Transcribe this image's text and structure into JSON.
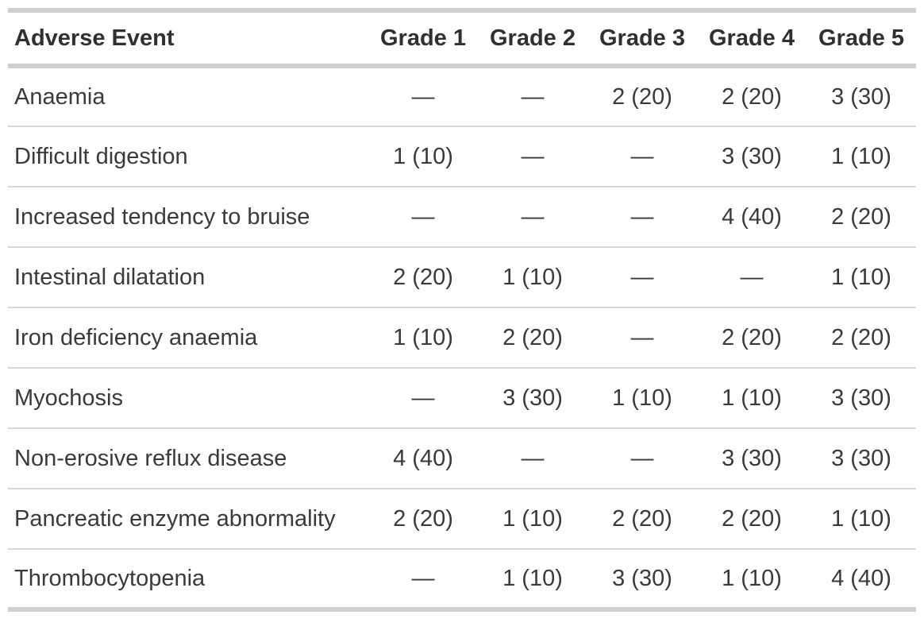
{
  "table": {
    "columns": [
      "Adverse Event",
      "Grade 1",
      "Grade 2",
      "Grade 3",
      "Grade 4",
      "Grade 5"
    ],
    "empty_marker": "—",
    "rows": [
      {
        "event": "Anaemia",
        "grades": [
          "—",
          "—",
          "2 (20)",
          "2 (20)",
          "3 (30)"
        ]
      },
      {
        "event": "Difficult digestion",
        "grades": [
          "1 (10)",
          "—",
          "—",
          "3 (30)",
          "1 (10)"
        ]
      },
      {
        "event": "Increased tendency to bruise",
        "grades": [
          "—",
          "—",
          "—",
          "4 (40)",
          "2 (20)"
        ]
      },
      {
        "event": "Intestinal dilatation",
        "grades": [
          "2 (20)",
          "1 (10)",
          "—",
          "—",
          "1 (10)"
        ]
      },
      {
        "event": "Iron deficiency anaemia",
        "grades": [
          "1 (10)",
          "2 (20)",
          "—",
          "2 (20)",
          "2 (20)"
        ]
      },
      {
        "event": "Myochosis",
        "grades": [
          "—",
          "3 (30)",
          "1 (10)",
          "1 (10)",
          "3 (30)"
        ]
      },
      {
        "event": "Non-erosive reflux disease",
        "grades": [
          "4 (40)",
          "—",
          "—",
          "3 (30)",
          "3 (30)"
        ]
      },
      {
        "event": "Pancreatic enzyme abnormality",
        "grades": [
          "2 (20)",
          "1 (10)",
          "2 (20)",
          "2 (20)",
          "1 (10)"
        ]
      },
      {
        "event": "Thrombocytopenia",
        "grades": [
          "—",
          "1 (10)",
          "3 (30)",
          "1 (10)",
          "4 (40)"
        ]
      }
    ],
    "colors": {
      "background": "#ffffff",
      "text": "#3a3a3a",
      "header_text": "#303030",
      "border_heavy": "#d0d0d0",
      "border_light": "#d9d9d9"
    }
  }
}
